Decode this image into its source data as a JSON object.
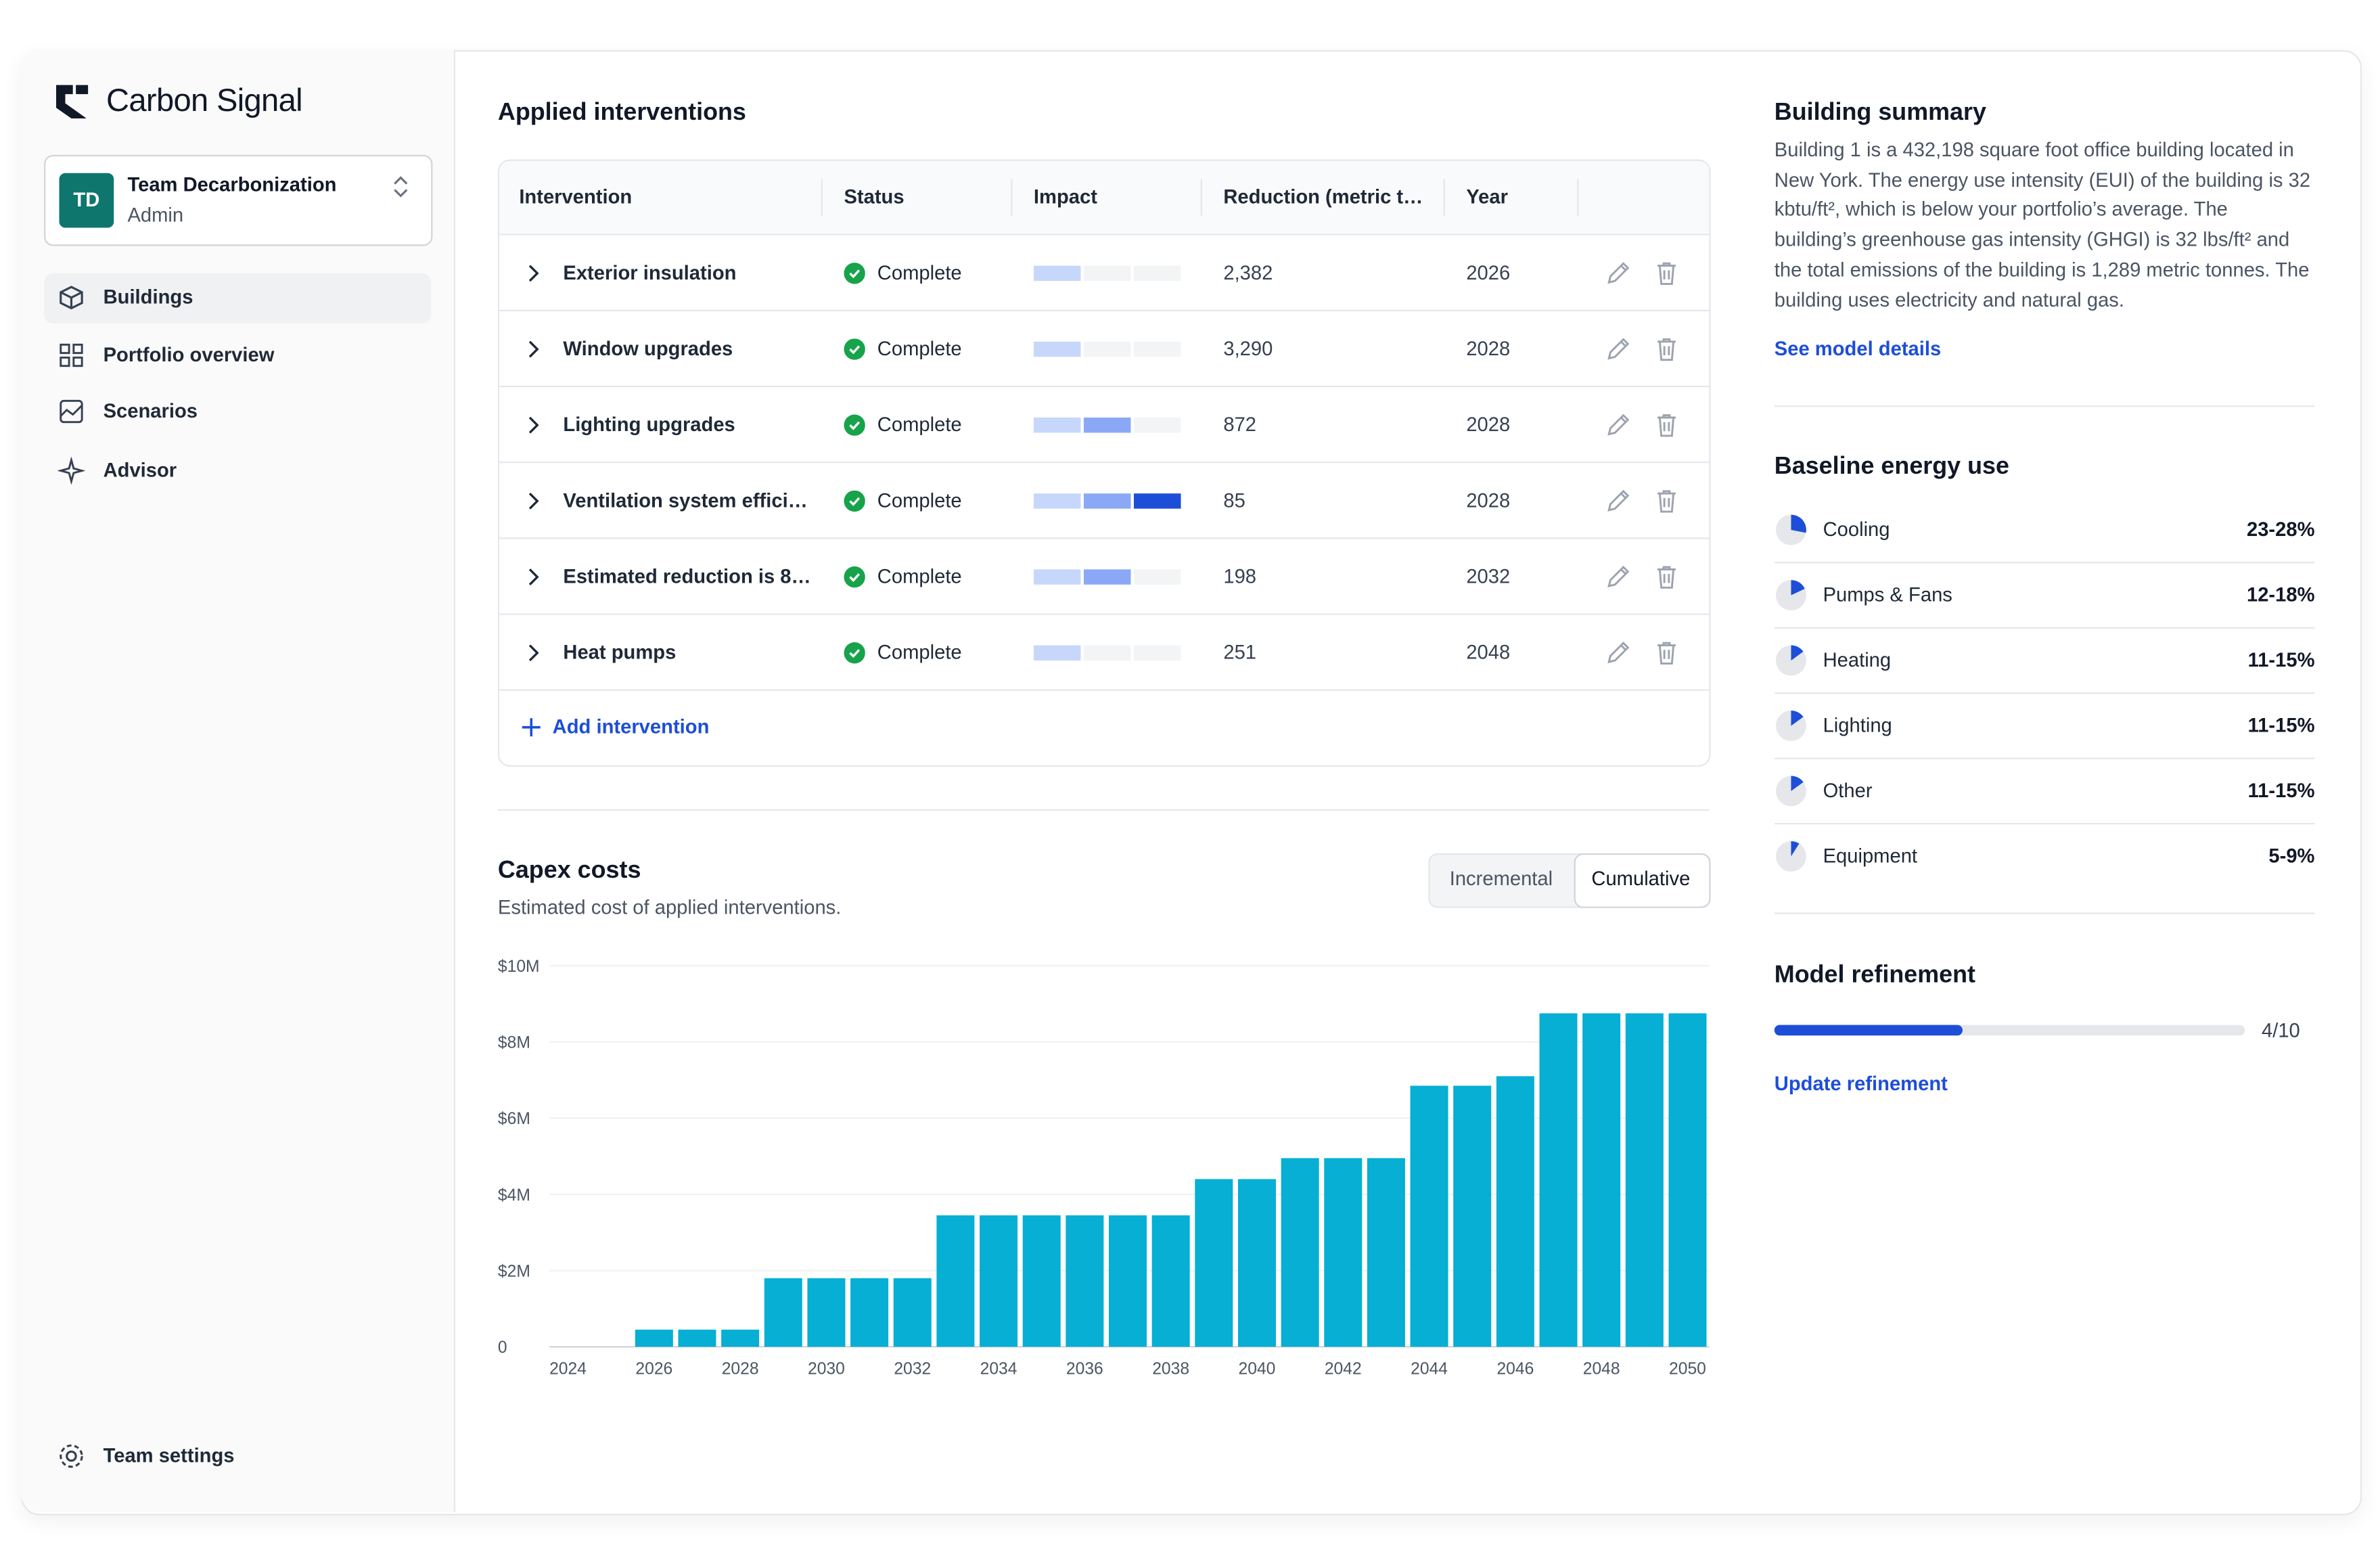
{
  "sidebar": {
    "brand": "Carbon Signal",
    "team": {
      "initials": "TD",
      "name": "Team Decarbonization",
      "role": "Admin"
    },
    "nav": [
      "Buildings",
      "Portfolio overview",
      "Scenarios",
      "Advisor"
    ],
    "footer": "Team settings"
  },
  "interventions": {
    "title": "Applied interventions",
    "columns": [
      "Intervention",
      "Status",
      "Impact",
      "Reduction (metric t…",
      "Year"
    ],
    "rows": [
      {
        "name": "Exterior insulation",
        "status": "Complete",
        "impact": 1,
        "reduction": "2,382",
        "year": 2026
      },
      {
        "name": "Window upgrades",
        "status": "Complete",
        "impact": 1,
        "reduction": "3,290",
        "year": 2028
      },
      {
        "name": "Lighting upgrades",
        "status": "Complete",
        "impact": 2,
        "reduction": "872",
        "year": 2028
      },
      {
        "name": "Ventilation system effici…",
        "status": "Complete",
        "impact": 3,
        "reduction": "85",
        "year": 2028
      },
      {
        "name": "Estimated reduction is 8…",
        "status": "Complete",
        "impact": 2,
        "reduction": "198",
        "year": 2032
      },
      {
        "name": "Heat pumps",
        "status": "Complete",
        "impact": 1,
        "reduction": "251",
        "year": 2048
      }
    ],
    "add": "Add intervention"
  },
  "capex_toggle": [
    "Incremental",
    "Cumulative"
  ],
  "chart_data": {
    "type": "bar",
    "title": "Capex costs",
    "subtitle": "Estimated cost of applied interventions.",
    "categories": [
      "2024",
      null,
      "2026",
      null,
      "2028",
      null,
      "2030",
      null,
      "2032",
      null,
      "2034",
      null,
      "2036",
      null,
      "2038",
      null,
      "2040",
      null,
      "2042",
      null,
      "2044",
      null,
      "2046",
      null,
      "2048",
      null,
      "2050"
    ],
    "values": [
      0,
      0,
      450000,
      450000,
      450000,
      1800000,
      1800000,
      1800000,
      1800000,
      3450000,
      3450000,
      3450000,
      3450000,
      3450000,
      3450000,
      4400000,
      4400000,
      4950000,
      4950000,
      4950000,
      6850000,
      6850000,
      7100000,
      8750000,
      8750000,
      8750000,
      8750000
    ],
    "color": "#06afd3",
    "ylim": [
      0,
      10000000
    ],
    "yticks": [
      0,
      {
        "value": 2000000,
        "label": "$2M"
      },
      {
        "value": 4000000,
        "label": "$4M"
      },
      {
        "value": 6000000,
        "label": "$6M"
      },
      {
        "value": 8000000,
        "label": "$8M"
      },
      {
        "value": 10000000,
        "label": "$10M"
      }
    ],
    "grid": true
  },
  "summary": {
    "title": "Building summary",
    "text": "Building 1 is a 432,198 square foot office building located in New York. The energy use intensity (EUI) of the building is 32 kbtu/ft², which is below your portfolio’s average. The building’s greenhouse gas intensity (GHGI) is 32 lbs/ft² and the total emissions of the building is 1,289 metric tonnes. The building uses electricity and natural gas.",
    "link": "See model details"
  },
  "baseline": {
    "title": "Baseline energy use",
    "rows": [
      {
        "name": "Cooling",
        "label": "23-28%",
        "low": 23,
        "high": 28
      },
      {
        "name": "Pumps & Fans",
        "label": "12-18%",
        "low": 12,
        "high": 18
      },
      {
        "name": "Heating",
        "label": "11-15%",
        "low": 11,
        "high": 15
      },
      {
        "name": "Lighting",
        "label": "11-15%",
        "low": 11,
        "high": 15
      },
      {
        "name": "Other",
        "label": "11-15%",
        "low": 11,
        "high": 15
      },
      {
        "name": "Equipment",
        "label": "5-9%",
        "low": 5,
        "high": 9
      }
    ]
  },
  "refinement": {
    "title": "Model refinement",
    "value": 4,
    "max": 10,
    "label": "4/10",
    "link": "Update refinement"
  }
}
